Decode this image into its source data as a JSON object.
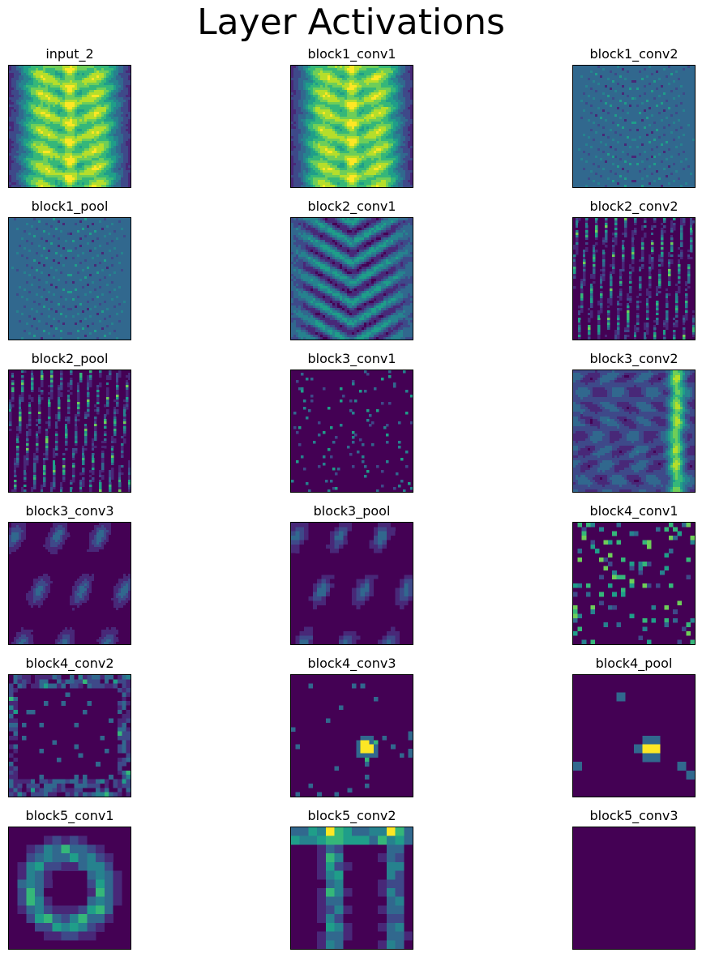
{
  "figure": {
    "title": "Layer Activations"
  },
  "colormap": [
    "#440154",
    "#482878",
    "#3e4989",
    "#31688e",
    "#26828e",
    "#1f9e89",
    "#35b779",
    "#6ece58",
    "#b5de2b",
    "#fde725"
  ],
  "chart_data": {
    "type": "heatmap",
    "title": "Layer Activations",
    "colormap": "viridis",
    "grid": false,
    "axes_visible": false,
    "panels": [
      {
        "name": "input_2",
        "pattern": "xray",
        "resolution": 224
      },
      {
        "name": "block1_conv1",
        "pattern": "xray",
        "resolution": 224
      },
      {
        "name": "block1_conv2",
        "pattern": "edges",
        "resolution": 224
      },
      {
        "name": "block1_pool",
        "pattern": "edges",
        "resolution": 112
      },
      {
        "name": "block2_conv1",
        "pattern": "ribs",
        "resolution": 112
      },
      {
        "name": "block2_conv2",
        "pattern": "streaks",
        "resolution": 112
      },
      {
        "name": "block2_pool",
        "pattern": "streaks",
        "resolution": 56
      },
      {
        "name": "block3_conv1",
        "pattern": "sparse",
        "resolution": 56
      },
      {
        "name": "block3_conv2",
        "pattern": "texture",
        "resolution": 56
      },
      {
        "name": "block3_conv3",
        "pattern": "faint",
        "resolution": 56
      },
      {
        "name": "block3_pool",
        "pattern": "faint",
        "resolution": 28
      },
      {
        "name": "block4_conv1",
        "pattern": "spots",
        "resolution": 28
      },
      {
        "name": "block4_conv2",
        "pattern": "frame",
        "resolution": 28
      },
      {
        "name": "block4_conv3",
        "pattern": "single",
        "resolution": 28
      },
      {
        "name": "block4_pool",
        "pattern": "single",
        "resolution": 14
      },
      {
        "name": "block5_conv1",
        "pattern": "ring",
        "resolution": 14
      },
      {
        "name": "block5_conv2",
        "pattern": "pillars",
        "resolution": 14
      },
      {
        "name": "block5_conv3",
        "pattern": "blank",
        "resolution": 14
      }
    ]
  }
}
